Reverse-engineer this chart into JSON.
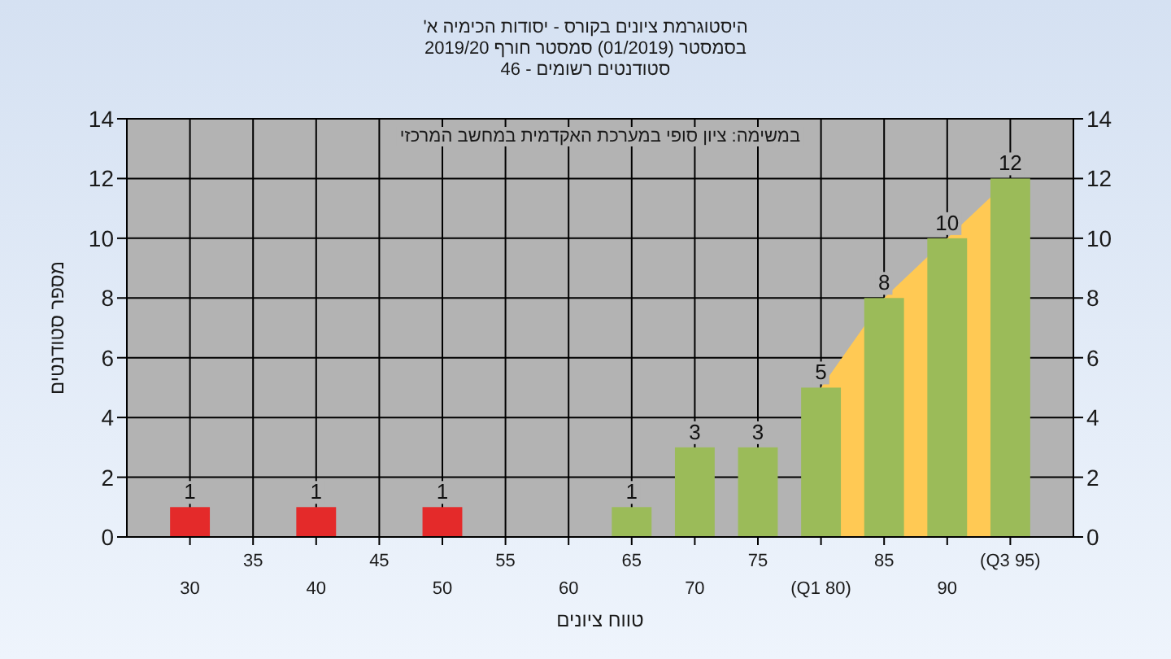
{
  "chart_data": {
    "type": "bar",
    "title": "היסטוגרמת ציונים בקורס - יסודות הכימיה א'",
    "subtitle": "בסמסטר (01/2019) סמסטר חורף 2019/20\nסטודנטים רשומים - 46",
    "xlabel": "טווח ציונים",
    "ylabel": "מספר סטודנטים",
    "annotations": [
      "במשימה: ציון סופי במערכת האקדמית במחשב המרכזי"
    ],
    "categories": [
      "30",
      "35",
      "40",
      "45",
      "50",
      "55",
      "60",
      "65",
      "70",
      "75",
      "(Q1 80)",
      "85",
      "90",
      "(Q3 95)"
    ],
    "series": [
      {
        "type": "area",
        "color": "#ffc954",
        "values": [
          null,
          null,
          null,
          null,
          null,
          null,
          null,
          null,
          null,
          null,
          5,
          8,
          10,
          12
        ]
      },
      {
        "colors": [
          "#e42a2a",
          "#e42a2a",
          "#e42a2a",
          "#e42a2a",
          "#e42a2a",
          "#9bbb59",
          "#9bbb59",
          "#9bbb59",
          "#9bbb59",
          "#9bbb59",
          "#9bbb59",
          "#9bbb59",
          "#9bbb59",
          "#9bbb59"
        ],
        "values": [
          1,
          0,
          1,
          0,
          1,
          0,
          0,
          1,
          3,
          3,
          5,
          8,
          10,
          12
        ],
        "value_labels": [
          "1",
          null,
          "1",
          null,
          "1",
          null,
          null,
          "1",
          "3",
          "3",
          "5",
          "8",
          "10",
          "12"
        ]
      }
    ],
    "ylim": [
      0,
      14
    ],
    "yticks": [
      0,
      2,
      4,
      6,
      8,
      10,
      12,
      14
    ],
    "y2lim": [
      0,
      14
    ],
    "y2ticks": [
      0,
      2,
      4,
      6,
      8,
      10,
      12,
      14
    ],
    "grid": true
  }
}
